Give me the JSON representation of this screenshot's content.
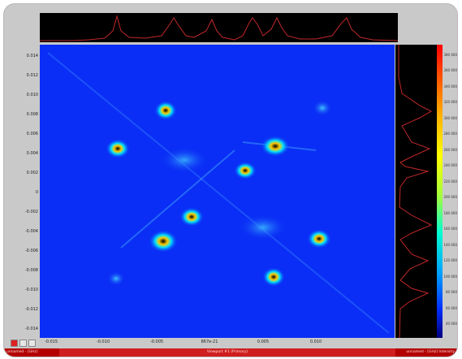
{
  "y_ticks": [
    "0.014",
    "0.012",
    "0.010",
    "0.008",
    "0.006",
    "0.004",
    "0.002",
    "0",
    "-0.002",
    "-0.004",
    "-0.006",
    "-0.008",
    "-0.010",
    "-0.012",
    "-0.014"
  ],
  "x_ticks": [
    "-0.015",
    "-0.010",
    "-0.005",
    "867e-21",
    "0.005",
    "0.010"
  ],
  "colorbar_ticks": [
    "380 000",
    "360 000",
    "340 000",
    "320 000",
    "300 000",
    "280 000",
    "260 000",
    "240 000",
    "220 000",
    "200 000",
    "180 000",
    "160 000",
    "140 000",
    "120 000",
    "100 000",
    "80 000",
    "60 000",
    "40 000"
  ],
  "status": {
    "left": "unnamed - [GHz]",
    "middle": "Viewport #1 (Primary)",
    "right": "unnamed - [GHz] Intensity"
  },
  "colors": {
    "background": "#0a2ef5",
    "profile_line": "#c0282a",
    "status_bar": "#b30000"
  }
}
